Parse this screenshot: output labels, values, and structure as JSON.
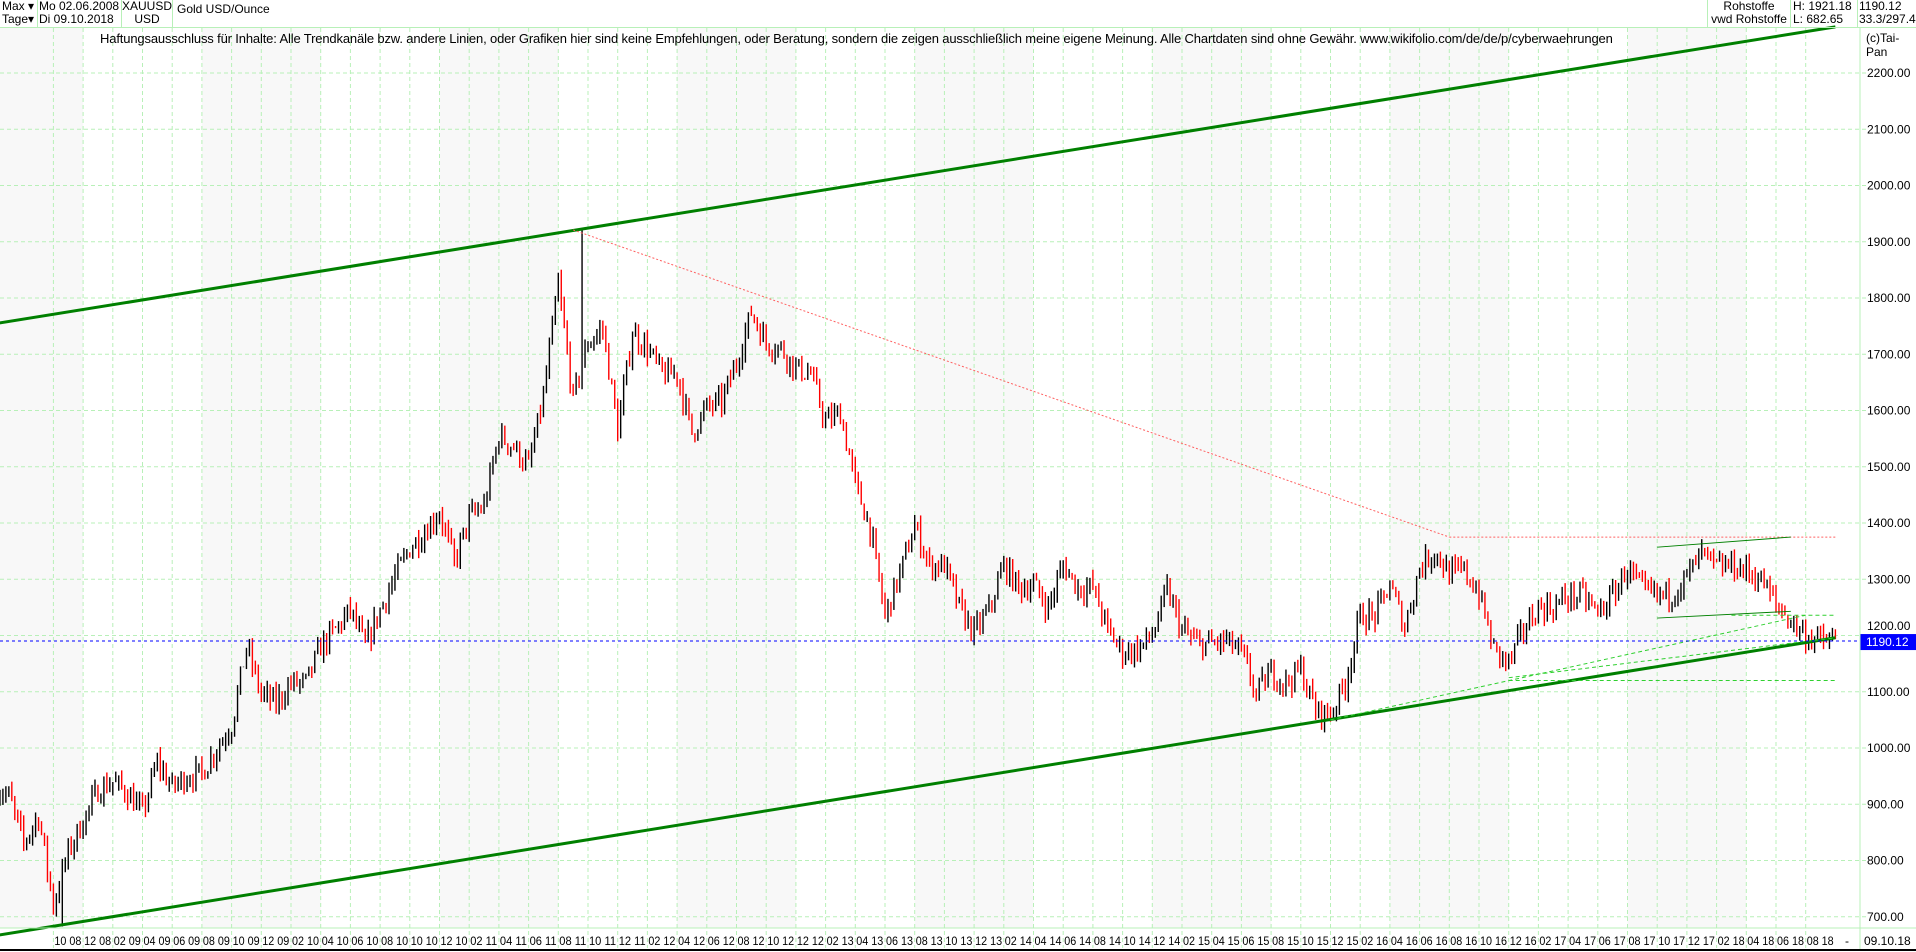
{
  "header": {
    "range_select": "Max",
    "interval_select": "Tage",
    "start_date": "Mo 02.06.2008",
    "end_date": "Di 09.10.2018",
    "symbol": "XAUUSD",
    "currency": "USD",
    "name": "Gold USD/Ounce",
    "category": "Rohstoffe",
    "source": "vwd Rohstoffe",
    "high": "H: 1921.18",
    "low": "L: 682.65",
    "last": "1190.12",
    "ratio": "33.3/297.4",
    "copyright": "(c)Tai-Pan"
  },
  "disclaimer": "Haftungsausschluss für Inhalte: Alle Trendkanäle bzw. andere Linien, oder Grafiken hier sind keine Empfehlungen, oder Beratung, sondern die zeigen ausschließlich meine eigene Meinung. Alle Chartdaten sind ohne Gewähr.  www.wikifolio.com/de/de/p/cyberwaehrungen",
  "colors": {
    "grid": "#b8f0b8",
    "up": "#000000",
    "down": "#ff0000",
    "trend": "#008000",
    "last_price_bg": "#0000ff",
    "band": "#f8f8f8"
  },
  "chart_data": {
    "type": "line",
    "title": "Gold USD/Ounce",
    "ylim": [
      680,
      2260
    ],
    "yticks": [
      "700.00",
      "800.00",
      "900.00",
      "1000.00",
      "1100.00",
      "1200.00",
      "1300.00",
      "1400.00",
      "1500.00",
      "1600.00",
      "1700.00",
      "1800.00",
      "1900.00",
      "2000.00",
      "2100.00",
      "2200.00"
    ],
    "xtick_labels": [
      "10 08",
      "12 08",
      "02 09",
      "04 09",
      "06 09",
      "08 09",
      "10 09",
      "12 09",
      "02 10",
      "04 10",
      "06 10",
      "08 10",
      "10 10",
      "12 10",
      "02 11",
      "04 11",
      "06 11",
      "08 11",
      "10 11",
      "12 11",
      "02 12",
      "04 12",
      "06 12",
      "08 12",
      "10 12",
      "12 12",
      "02 13",
      "04 13",
      "06 13",
      "08 13",
      "10 13",
      "12 13",
      "02 14",
      "04 14",
      "06 14",
      "08 14",
      "10 14",
      "12 14",
      "02 15",
      "04 15",
      "06 15",
      "08 15",
      "10 15",
      "12 15",
      "02 16",
      "04 16",
      "06 16",
      "08 16",
      "10 16",
      "12 16",
      "02 17",
      "04 17",
      "06 17",
      "08 17",
      "10 17",
      "12 17",
      "02 18",
      "04 18",
      "06 18",
      "08 18"
    ],
    "xtick_end": "-",
    "xtick_last_date": "09.10.18",
    "last_price": 1190.12,
    "grid": true,
    "series": [
      {
        "monthly_close": {
          "2008": [
            930,
            915,
            830,
            880,
            720,
            815,
            870
          ],
          "2009": [
            925,
            940,
            920,
            885,
            975,
            930,
            950,
            955,
            1000,
            1040,
            1180,
            1095
          ],
          "2010": [
            1080,
            1115,
            1115,
            1180,
            1210,
            1245,
            1180,
            1245,
            1305,
            1355,
            1385,
            1420
          ],
          "2011": [
            1330,
            1410,
            1430,
            1555,
            1535,
            1500,
            1625,
            1825,
            1620,
            1720,
            1745,
            1565
          ],
          "2012": [
            1740,
            1710,
            1665,
            1665,
            1560,
            1605,
            1615,
            1685,
            1775,
            1720,
            1710,
            1675
          ],
          "2013": [
            1665,
            1580,
            1595,
            1470,
            1390,
            1235,
            1310,
            1395,
            1325,
            1325,
            1250,
            1205
          ],
          "2014": [
            1245,
            1325,
            1285,
            1290,
            1250,
            1325,
            1285,
            1285,
            1210,
            1170,
            1175,
            1200
          ],
          "2015": [
            1280,
            1210,
            1185,
            1185,
            1190,
            1170,
            1095,
            1135,
            1115,
            1140,
            1065,
            1060
          ],
          "2016": [
            1115,
            1235,
            1235,
            1290,
            1215,
            1320,
            1350,
            1310,
            1315,
            1275,
            1175,
            1150
          ],
          "2017": [
            1210,
            1250,
            1250,
            1270,
            1270,
            1240,
            1270,
            1320,
            1280,
            1270,
            1275,
            1305
          ],
          "2018": [
            1345,
            1320,
            1325,
            1315,
            1300,
            1255,
            1225,
            1200,
            1190,
            1190.12
          ]
        },
        "first_month": "2008-06",
        "extremes": [
          {
            "date": "2008-10",
            "value": 682.65,
            "label": "low"
          },
          {
            "date": "2011-09",
            "value": 1921.18,
            "label": "high"
          }
        ]
      }
    ],
    "annotations": [
      {
        "kind": "trend-upper-channel",
        "from": [
          "2008-06",
          1754
        ],
        "to": [
          "2018-10",
          2282
        ],
        "color": "#008000"
      },
      {
        "kind": "trend-lower-channel",
        "from": [
          "2008-06",
          666
        ],
        "to": [
          "2018-10",
          1196
        ],
        "color": "#008000"
      },
      {
        "kind": "red-dotted-resistance",
        "from": [
          "2011-09",
          1921
        ],
        "to": [
          "2016-08",
          1375
        ],
        "color": "#ff6060"
      },
      {
        "kind": "red-dotted-horizontal",
        "from": [
          "2016-08",
          1375
        ],
        "to": [
          "2018-10",
          1375
        ],
        "color": "#ff6060"
      },
      {
        "kind": "green-dashed-support",
        "from": [
          "2015-12",
          1050
        ],
        "to": [
          "2018-08",
          1236
        ],
        "color": "#30d030"
      },
      {
        "kind": "green-dashed-support",
        "from": [
          "2016-12",
          1125
        ],
        "to": [
          "2018-10",
          1196
        ],
        "color": "#30d030"
      },
      {
        "kind": "green-dashed-horizontal",
        "from": [
          "2016-12",
          1120
        ],
        "to": [
          "2018-10",
          1120
        ],
        "color": "#30d030"
      },
      {
        "kind": "green-dashed-horizontal",
        "from": [
          "2018-03",
          1236
        ],
        "to": [
          "2018-10",
          1236
        ],
        "color": "#30d030"
      },
      {
        "kind": "green-thin-upper",
        "from": [
          "2017-10",
          1357
        ],
        "to": [
          "2018-07",
          1375
        ],
        "color": "#008000"
      },
      {
        "kind": "green-thin-lower",
        "from": [
          "2017-10",
          1231
        ],
        "to": [
          "2018-07",
          1243
        ],
        "color": "#008000"
      },
      {
        "kind": "last-price-line",
        "value": 1190.12,
        "color": "#0000ff"
      }
    ]
  }
}
